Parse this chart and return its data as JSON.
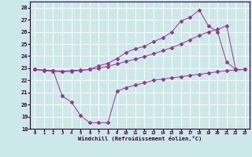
{
  "xlabel": "Windchill (Refroidissement éolien,°C)",
  "bg_color": "#cce8e8",
  "grid_color": "#ffffff",
  "line_color": "#993399",
  "xlim": [
    -0.5,
    23.5
  ],
  "ylim": [
    18,
    28.5
  ],
  "xticks": [
    0,
    1,
    2,
    3,
    4,
    5,
    6,
    7,
    8,
    9,
    10,
    11,
    12,
    13,
    14,
    15,
    16,
    17,
    18,
    19,
    20,
    21,
    22,
    23
  ],
  "yticks": [
    18,
    19,
    20,
    21,
    22,
    23,
    24,
    25,
    26,
    27,
    28
  ],
  "series1_x": [
    0,
    1,
    2,
    3,
    4,
    5,
    6,
    7,
    8,
    9,
    10,
    11,
    12,
    13,
    14,
    15,
    16,
    17,
    18,
    19,
    20,
    21,
    22,
    23
  ],
  "series1_y": [
    22.9,
    22.8,
    22.8,
    22.75,
    22.8,
    22.85,
    22.9,
    23.0,
    23.15,
    23.35,
    23.55,
    23.75,
    23.95,
    24.2,
    24.45,
    24.7,
    25.0,
    25.35,
    25.7,
    26.0,
    26.2,
    26.5,
    22.9,
    22.9
  ],
  "series2_x": [
    0,
    1,
    2,
    3,
    4,
    5,
    6,
    7,
    8,
    9,
    10,
    11,
    12,
    13,
    14,
    15,
    16,
    17,
    18,
    19,
    20,
    21,
    22,
    23
  ],
  "series2_y": [
    22.9,
    22.8,
    22.75,
    22.7,
    22.75,
    22.8,
    22.9,
    23.2,
    23.4,
    23.8,
    24.3,
    24.6,
    24.8,
    25.2,
    25.5,
    26.0,
    26.9,
    27.2,
    27.8,
    26.5,
    26.0,
    23.5,
    22.9,
    22.9
  ],
  "series3_x": [
    0,
    1,
    2,
    3,
    4,
    5,
    6,
    7,
    8,
    9,
    10,
    11,
    12,
    13,
    14,
    15,
    16,
    17,
    18,
    19,
    20,
    21,
    22,
    23
  ],
  "series3_y": [
    22.9,
    22.85,
    22.8,
    20.7,
    20.2,
    19.1,
    18.5,
    18.5,
    18.5,
    21.1,
    21.4,
    21.6,
    21.8,
    22.0,
    22.1,
    22.2,
    22.3,
    22.4,
    22.5,
    22.6,
    22.7,
    22.8,
    22.85,
    22.9
  ]
}
